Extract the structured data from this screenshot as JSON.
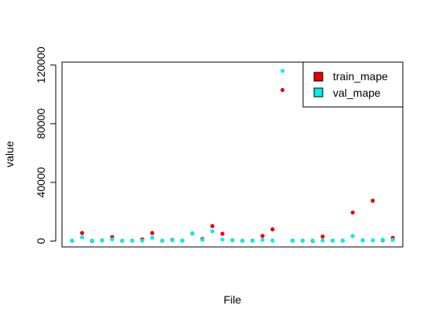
{
  "chart_data": {
    "type": "scatter",
    "title": "",
    "xlabel": "File",
    "ylabel": "value",
    "ylim": [
      -4000,
      122000
    ],
    "xlim": [
      0.0,
      34.0
    ],
    "yticks": [
      0,
      40000,
      80000,
      120000
    ],
    "ytick_labels": [
      "0",
      "40000",
      "80000",
      "120000"
    ],
    "grid": false,
    "legend_position": "top-right",
    "legend": [
      "train_mape",
      "val_mape"
    ],
    "colors": {
      "train_mape": "#ee0000",
      "val_mape": "#00eeee"
    },
    "x": [
      1,
      2,
      3,
      4,
      5,
      6,
      7,
      8,
      9,
      10,
      11,
      12,
      13,
      14,
      15,
      16,
      17,
      18,
      19,
      20,
      21,
      22,
      23,
      24,
      25,
      26,
      27,
      28,
      29,
      30,
      31,
      32,
      33
    ],
    "series": [
      {
        "name": "train_mape",
        "values": [
          200,
          5500,
          50,
          500,
          2700,
          200,
          300,
          1200,
          5500,
          250,
          800,
          300,
          5200,
          1400,
          10200,
          5000,
          600,
          250,
          300,
          3500,
          8000,
          103000,
          300,
          300,
          100,
          3100,
          300,
          300,
          19500,
          500,
          27500,
          600,
          2200
        ]
      },
      {
        "name": "val_mape",
        "values": [
          300,
          2500,
          300,
          500,
          1200,
          200,
          250,
          300,
          2300,
          400,
          500,
          300,
          5000,
          800,
          6700,
          1000,
          700,
          300,
          250,
          800,
          300,
          116000,
          300,
          300,
          300,
          400,
          300,
          300,
          3500,
          500,
          500,
          1000,
          800
        ]
      }
    ]
  }
}
